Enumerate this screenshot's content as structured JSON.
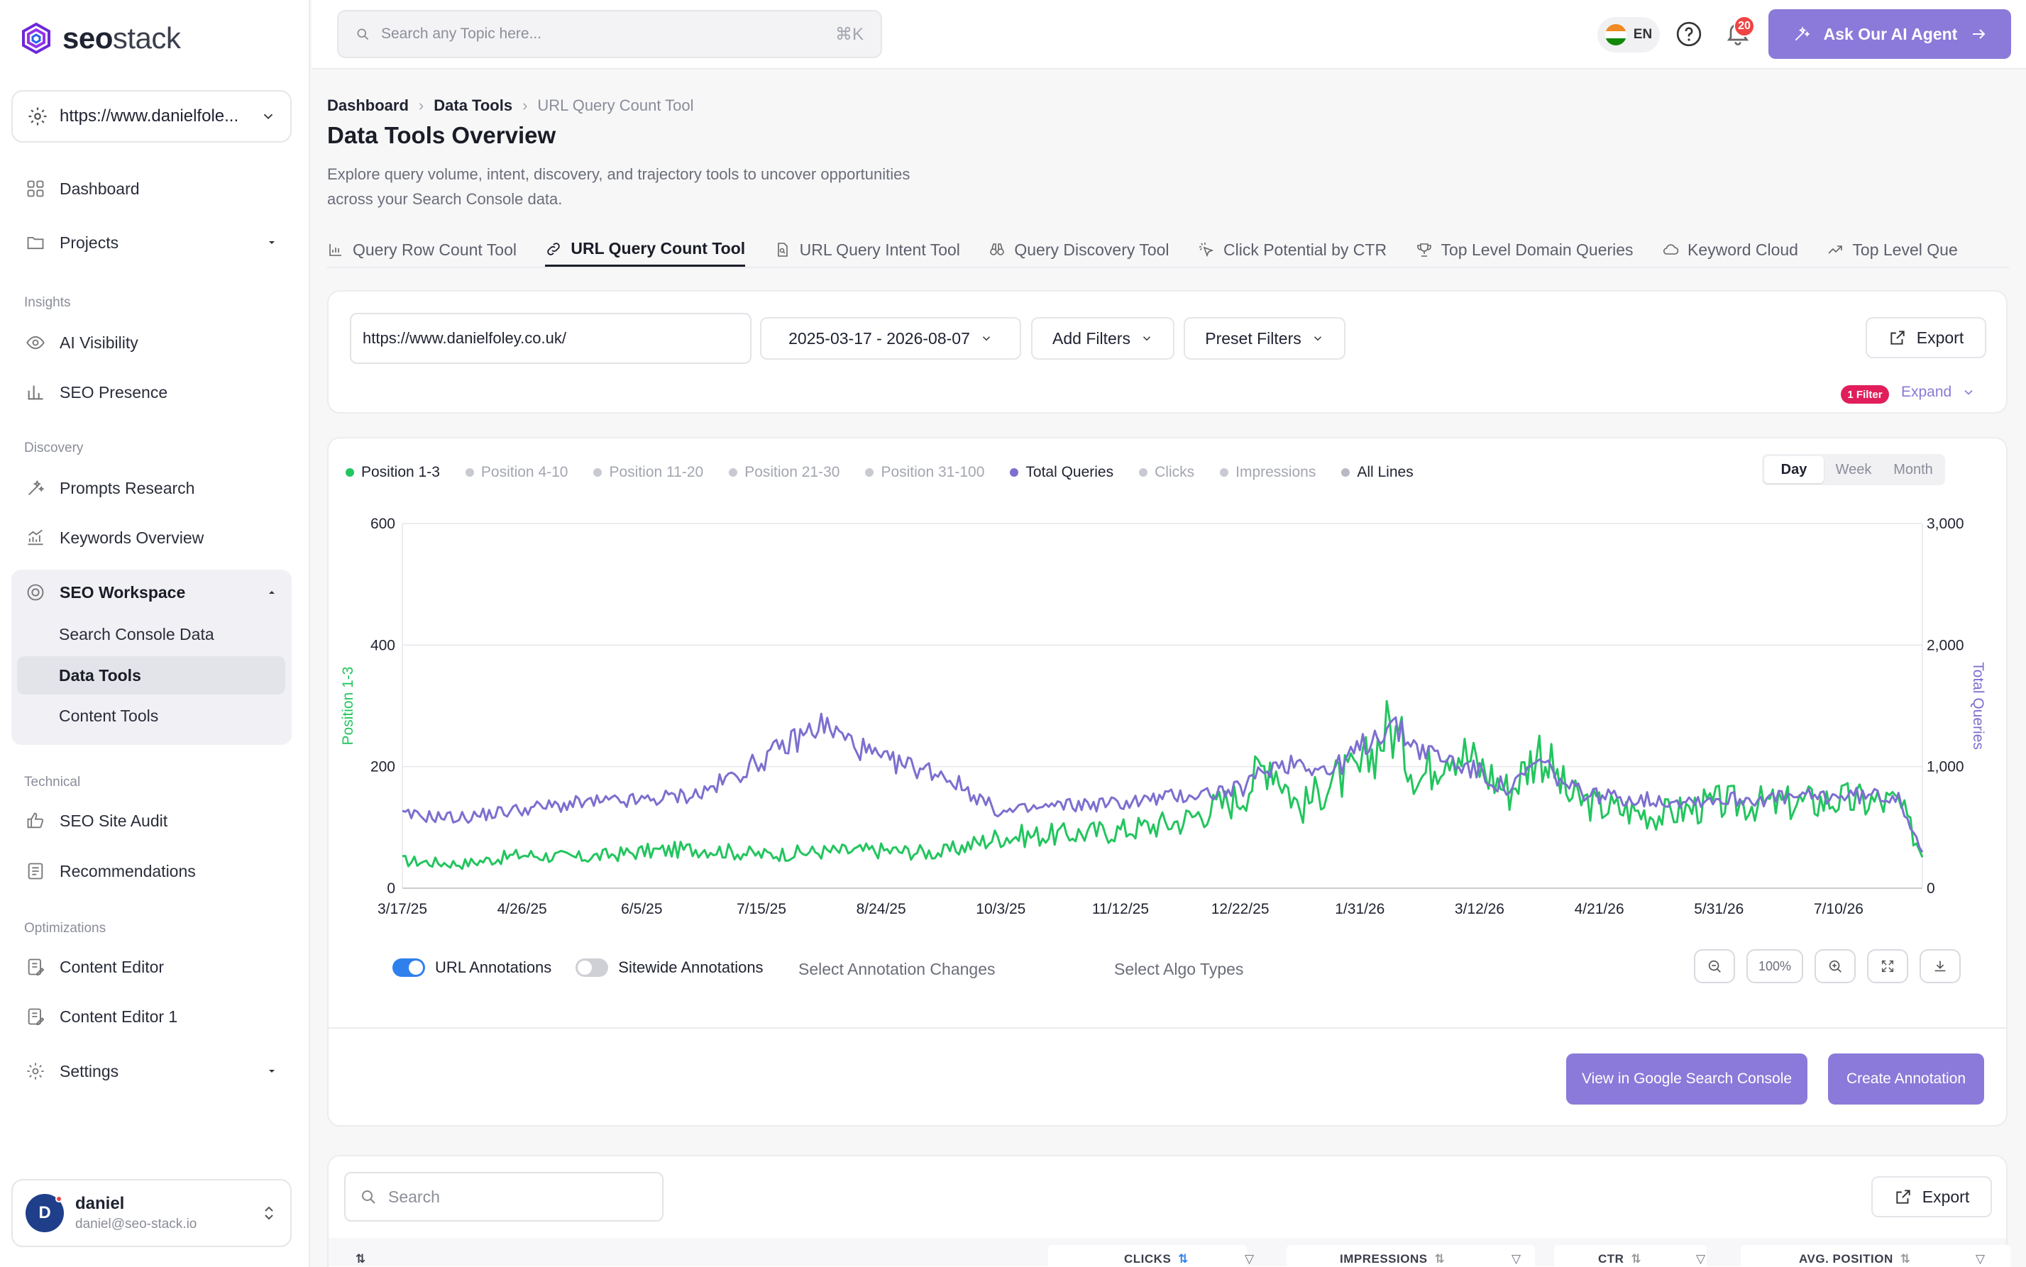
{
  "brand": {
    "name_bold": "seo",
    "name_light": "stack"
  },
  "site_selector": {
    "value": "https://www.danielfole..."
  },
  "sidebar": {
    "dashboard": "Dashboard",
    "projects": "Projects",
    "sections": {
      "insights": "Insights",
      "discovery": "Discovery",
      "technical": "Technical",
      "optimizations": "Optimizations"
    },
    "ai_visibility": "AI Visibility",
    "seo_presence": "SEO Presence",
    "prompts_research": "Prompts Research",
    "keywords_overview": "Keywords Overview",
    "seo_workspace": "SEO Workspace",
    "workspace_items": [
      "Search Console Data",
      "Data Tools",
      "Content Tools"
    ],
    "seo_site_audit": "SEO Site Audit",
    "recommendations": "Recommendations",
    "content_editor": "Content Editor",
    "content_editor_1": "Content Editor 1",
    "settings": "Settings"
  },
  "user": {
    "initial": "D",
    "name": "daniel",
    "email": "daniel@seo-stack.io"
  },
  "topbar": {
    "search_placeholder": "Search any Topic here...",
    "shortcut": "⌘K",
    "lang": "EN",
    "notifications": "20",
    "ai_button": "Ask Our AI Agent"
  },
  "breadcrumb": [
    "Dashboard",
    "Data Tools",
    "URL Query Count Tool"
  ],
  "page": {
    "title": "Data Tools Overview",
    "desc_line1": "Explore query volume, intent, discovery, and trajectory tools to uncover opportunities",
    "desc_line2": "across your Search Console data."
  },
  "tabs": [
    "Query Row Count Tool",
    "URL Query Count Tool",
    "URL Query Intent Tool",
    "Query Discovery Tool",
    "Click Potential by CTR",
    "Top Level Domain Queries",
    "Keyword Cloud",
    "Top Level Que"
  ],
  "filters": {
    "url": "https://www.danielfoley.co.uk/",
    "date_range": "2025-03-17 - 2026-08-07",
    "add_filters": "Add Filters",
    "preset_filters": "Preset Filters",
    "export": "Export",
    "filter_count": "1 Filter",
    "expand": "Expand"
  },
  "legend": [
    {
      "label": "Position 1-3",
      "on": true,
      "color": "#22c55e"
    },
    {
      "label": "Position 4-10",
      "on": false
    },
    {
      "label": "Position 11-20",
      "on": false
    },
    {
      "label": "Position 21-30",
      "on": false
    },
    {
      "label": "Position 31-100",
      "on": false
    },
    {
      "label": "Total Queries",
      "on": true,
      "color": "#7c6fcf"
    },
    {
      "label": "Clicks",
      "on": false
    },
    {
      "label": "Impressions",
      "on": false
    },
    {
      "label": "All Lines",
      "on": true,
      "color": "#b8bac3"
    }
  ],
  "granularity": {
    "options": [
      "Day",
      "Week",
      "Month"
    ],
    "selected": "Day"
  },
  "chart_data": {
    "type": "line",
    "x_start": "3/17/25",
    "x_end": "8/7/26",
    "xticks": [
      "3/17/25",
      "4/26/25",
      "6/5/25",
      "7/15/25",
      "8/24/25",
      "10/3/25",
      "11/12/25",
      "12/22/25",
      "1/31/26",
      "3/12/26",
      "4/21/26",
      "5/31/26",
      "7/10/26"
    ],
    "ylabel_left": "Position 1-3",
    "ylabel_right": "Total Queries",
    "yticks_left": [
      "600",
      "400",
      "200",
      "0"
    ],
    "yticks_right": [
      "3,000",
      "2,000",
      "1,000",
      "0"
    ],
    "ylim_left": [
      0,
      600
    ],
    "ylim_right": [
      0,
      3000
    ],
    "grid": true,
    "series": [
      {
        "name": "Position 1-3",
        "axis": "left",
        "color": "#22c55e",
        "x": [
          "3/17/25",
          "4/6/25",
          "4/26/25",
          "5/16/25",
          "6/5/25",
          "6/25/25",
          "7/15/25",
          "8/4/25",
          "8/24/25",
          "9/13/25",
          "10/3/25",
          "10/23/25",
          "11/12/25",
          "12/2/25",
          "12/22/25",
          "1/1/26",
          "1/11/26",
          "1/21/26",
          "1/31/26",
          "2/10/26",
          "2/20/26",
          "3/2/26",
          "3/12/26",
          "3/22/26",
          "4/1/26",
          "4/11/26",
          "4/21/26",
          "5/11/26",
          "5/31/26",
          "6/20/26",
          "7/10/26",
          "7/30/26",
          "8/7/26"
        ],
        "y": [
          45,
          40,
          55,
          50,
          60,
          65,
          55,
          60,
          62,
          58,
          85,
          88,
          95,
          110,
          150,
          215,
          130,
          175,
          190,
          270,
          180,
          240,
          200,
          160,
          230,
          150,
          135,
          120,
          140,
          138,
          145,
          140,
          55
        ]
      },
      {
        "name": "Total Queries",
        "axis": "right",
        "color": "#7c6fcf",
        "x": [
          "3/17/25",
          "4/6/25",
          "4/26/25",
          "5/16/25",
          "6/5/25",
          "6/25/25",
          "7/15/25",
          "8/4/25",
          "8/24/25",
          "9/13/25",
          "10/3/25",
          "10/23/25",
          "11/12/25",
          "12/2/25",
          "12/22/25",
          "1/1/26",
          "1/11/26",
          "1/21/26",
          "1/31/26",
          "2/10/26",
          "2/20/26",
          "3/2/26",
          "3/12/26",
          "3/22/26",
          "4/1/26",
          "4/11/26",
          "4/21/26",
          "5/11/26",
          "5/31/26",
          "6/20/26",
          "7/10/26",
          "7/30/26",
          "8/7/26"
        ],
        "y": [
          600,
          580,
          650,
          700,
          720,
          780,
          1050,
          1350,
          1050,
          950,
          620,
          680,
          700,
          760,
          810,
          1000,
          1050,
          950,
          1150,
          1350,
          1150,
          1050,
          950,
          800,
          1050,
          820,
          760,
          720,
          730,
          740,
          760,
          760,
          300
        ]
      }
    ]
  },
  "annotations": {
    "url_annotations": "URL Annotations",
    "sitewide_annotations": "Sitewide Annotations",
    "select_changes": "Select Annotation Changes",
    "select_algo": "Select Algo Types",
    "zoom_level": "100%"
  },
  "actions": {
    "view_gsc": "View in Google Search Console",
    "create_annotation": "Create Annotation"
  },
  "table": {
    "search_placeholder": "Search",
    "export": "Export",
    "columns": [
      "CLICKS",
      "IMPRESSIONS",
      "CTR",
      "AVG. POSITION"
    ]
  },
  "colors": {
    "accent": "#8b7ad9",
    "green": "#22c55e",
    "purple": "#7c6fcf",
    "badge": "#ef4444"
  }
}
